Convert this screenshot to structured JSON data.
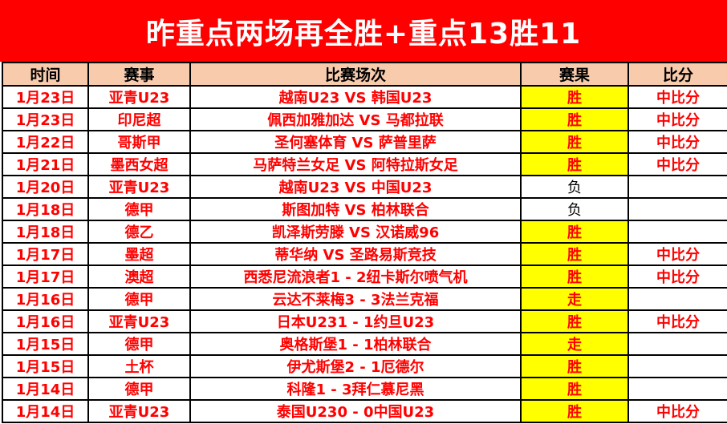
{
  "banner": {
    "title": "昨重点两场再全胜+重点13胜11"
  },
  "table": {
    "headers": {
      "date": "时间",
      "league": "赛事",
      "match": "比赛场次",
      "result": "赛果",
      "score": "比分"
    },
    "rows": [
      {
        "date": "1月23日",
        "league": "亚青U23",
        "match": "越南U23 VS 韩国U23",
        "result": "胜",
        "score": "中比分"
      },
      {
        "date": "1月23日",
        "league": "印尼超",
        "match": "佩西加雅加达 VS 马都拉联",
        "result": "胜",
        "score": "中比分"
      },
      {
        "date": "1月22日",
        "league": "哥斯甲",
        "match": "圣何塞体育 VS 萨普里萨",
        "result": "胜",
        "score": "中比分"
      },
      {
        "date": "1月21日",
        "league": "墨西女超",
        "match": "马萨特兰女足 VS 阿特拉斯女足",
        "result": "胜",
        "score": "中比分"
      },
      {
        "date": "1月20日",
        "league": "亚青U23",
        "match": "越南U23 VS 中国U23",
        "result": "负",
        "score": ""
      },
      {
        "date": "1月18日",
        "league": "德甲",
        "match": "斯图加特 VS 柏林联合",
        "result": "负",
        "score": ""
      },
      {
        "date": "1月18日",
        "league": "德乙",
        "match": "凯泽斯劳滕 VS 汉诺威96",
        "result": "胜",
        "score": ""
      },
      {
        "date": "1月17日",
        "league": "墨超",
        "match": "蒂华纳 VS 圣路易斯竞技",
        "result": "胜",
        "score": "中比分"
      },
      {
        "date": "1月17日",
        "league": "澳超",
        "match": "西悉尼流浪者1 - 2纽卡斯尔喷气机",
        "result": "胜",
        "score": "中比分"
      },
      {
        "date": "1月16日",
        "league": "德甲",
        "match": "云达不莱梅3 - 3法兰克福",
        "result": "走",
        "score": ""
      },
      {
        "date": "1月16日",
        "league": "亚青U23",
        "match": "日本U231 - 1约旦U23",
        "result": "胜",
        "score": "中比分"
      },
      {
        "date": "1月15日",
        "league": "德甲",
        "match": "奥格斯堡1 - 1柏林联合",
        "result": "走",
        "score": ""
      },
      {
        "date": "1月15日",
        "league": "土杯",
        "match": "伊尤斯堡2 - 1厄德尔",
        "result": "胜",
        "score": ""
      },
      {
        "date": "1月14日",
        "league": "德甲",
        "match": "科隆1 - 3拜仁慕尼黑",
        "result": "胜",
        "score": ""
      },
      {
        "date": "1月14日",
        "league": "亚青U23",
        "match": "泰国U230 - 0中国U23",
        "result": "胜",
        "score": "中比分"
      }
    ],
    "loss_value": "负"
  },
  "colors": {
    "banner_red": "#ff0000",
    "header_peach": "#f8cbad",
    "win_highlight_yellow": "#ffff00",
    "text_red": "#ff0000",
    "loss_text_black": "#000000"
  }
}
